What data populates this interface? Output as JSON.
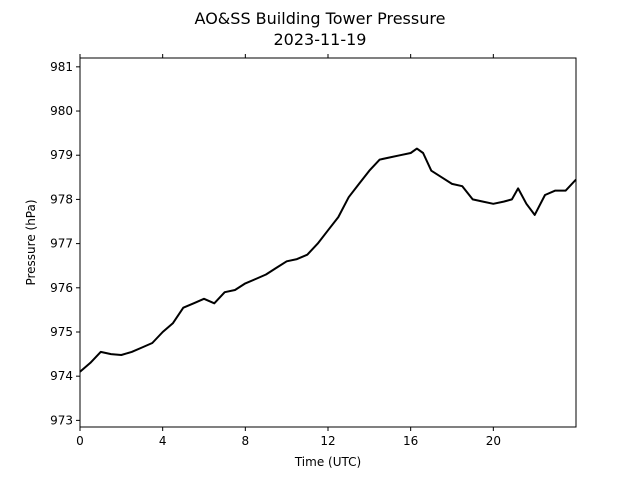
{
  "chart_data": {
    "type": "line",
    "title": "AO&SS Building Tower Pressure",
    "subtitle": "2023-11-19",
    "xlabel": "Time (UTC)",
    "ylabel": "Pressure (hPa)",
    "xlim": [
      0,
      24
    ],
    "ylim": [
      972.85,
      981.2
    ],
    "xticks": [
      0,
      4,
      8,
      12,
      16,
      20
    ],
    "yticks": [
      973,
      974,
      975,
      976,
      977,
      978,
      979,
      980,
      981
    ],
    "grid": false,
    "legend": "none",
    "line_color": "#000000",
    "series": [
      {
        "x": [
          0,
          0.5,
          1,
          1.5,
          2,
          2.5,
          3,
          3.5,
          4,
          4.5,
          5,
          5.5,
          6,
          6.5,
          7,
          7.5,
          8,
          8.5,
          9,
          9.5,
          10,
          10.5,
          11,
          11.5,
          12,
          12.5,
          13,
          13.5,
          14,
          14.5,
          15,
          15.5,
          16,
          16.3,
          16.6,
          17,
          17.5,
          18,
          18.5,
          19,
          19.5,
          20,
          20.5,
          20.9,
          21.2,
          21.6,
          22,
          22.5,
          23,
          23.5,
          24
        ],
        "values": [
          974.1,
          974.3,
          974.55,
          974.5,
          974.48,
          974.55,
          974.65,
          974.75,
          975.0,
          975.2,
          975.55,
          975.65,
          975.75,
          975.65,
          975.9,
          975.95,
          976.1,
          976.2,
          976.3,
          976.45,
          976.6,
          976.65,
          976.75,
          977.0,
          977.3,
          977.6,
          978.05,
          978.35,
          978.65,
          978.9,
          978.95,
          979.0,
          979.05,
          979.15,
          979.05,
          978.65,
          978.5,
          978.35,
          978.3,
          978.0,
          977.95,
          977.9,
          977.95,
          978.0,
          978.25,
          977.9,
          977.65,
          978.1,
          978.2,
          978.2,
          978.45
        ]
      }
    ]
  }
}
